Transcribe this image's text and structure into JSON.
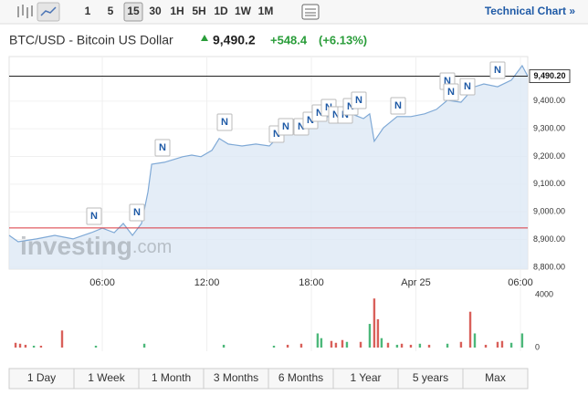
{
  "toolbar": {
    "intervals": [
      "1",
      "5",
      "15",
      "30",
      "1H",
      "5H",
      "1D",
      "1W",
      "1M"
    ],
    "link": "Technical Chart »"
  },
  "header": {
    "title": "BTC/USD - Bitcoin US Dollar",
    "price": "9,490.2",
    "change": "+548.4",
    "change_percent": "(+6.13%)"
  },
  "watermark": [
    "investing",
    ".com"
  ],
  "news_label": "N",
  "ranges": [
    "1 Day",
    "1 Week",
    "1 Month",
    "3 Months",
    "6 Months",
    "1 Year",
    "5 years",
    "Max"
  ],
  "chart_data": {
    "type": "line",
    "color": "#7fa9d6",
    "x": [
      0.65,
      1.17,
      2.22,
      3.27,
      4.32,
      5.37,
      6.0,
      6.68,
      7.2,
      7.73,
      8.25,
      8.62,
      8.83,
      9.56,
      10.08,
      10.61,
      11.13,
      11.66,
      12.29,
      12.71,
      13.23,
      14.02,
      14.81,
      15.59,
      16.11,
      16.9,
      17.68,
      18.21,
      18.99,
      19.62,
      20.3,
      20.99,
      21.35,
      21.61,
      22.14,
      22.92,
      23.71,
      24.5,
      25.18,
      25.81,
      26.59,
      27.38,
      27.9,
      28.69,
      29.48,
      30.1,
      30.42
    ],
    "values": [
      8915,
      8892,
      8902,
      8915,
      8902,
      8925,
      8941,
      8925,
      8958,
      8915,
      8958,
      9073,
      9172,
      9179,
      9189,
      9199,
      9205,
      9199,
      9222,
      9265,
      9245,
      9238,
      9245,
      9238,
      9271,
      9288,
      9311,
      9337,
      9344,
      9330,
      9354,
      9337,
      9354,
      9255,
      9304,
      9344,
      9344,
      9354,
      9370,
      9403,
      9396,
      9452,
      9462,
      9452,
      9476,
      9528,
      9490.2
    ],
    "last_label": "9,490.20",
    "previous_close": 8941.8,
    "xlim": [
      0.65,
      30.42
    ],
    "xticks": [
      {
        "value": 6,
        "label": "06:00"
      },
      {
        "value": 12,
        "label": "12:00"
      },
      {
        "value": 18,
        "label": "18:00"
      },
      {
        "value": 24,
        "label": "Apr 25"
      },
      {
        "value": 30,
        "label": "06:00"
      }
    ],
    "ylim": [
      8793,
      9561
    ],
    "yticks": [
      {
        "value": 8800,
        "label": "8,800.00"
      },
      {
        "value": 8900,
        "label": "8,900.00"
      },
      {
        "value": 9000,
        "label": "9,000.00"
      },
      {
        "value": 9100,
        "label": "9,100.00"
      },
      {
        "value": 9200,
        "label": "9,200.00"
      },
      {
        "value": 9300,
        "label": "9,300.00"
      },
      {
        "value": 9400,
        "label": "9,400.00"
      }
    ],
    "volume": {
      "x": [
        1.02,
        1.28,
        1.59,
        2.07,
        2.48,
        3.69,
        5.63,
        8.41,
        12.97,
        15.85,
        16.64,
        17.42,
        18.36,
        18.57,
        19.15,
        19.41,
        19.78,
        20.04,
        20.83,
        21.35,
        21.61,
        21.82,
        22.03,
        22.4,
        22.92,
        23.19,
        23.71,
        24.23,
        24.76,
        25.81,
        26.59,
        27.12,
        27.38,
        28.01,
        28.69,
        28.95,
        29.48,
        30.1
      ],
      "values": [
        360,
        290,
        210,
        140,
        140,
        1290,
        140,
        290,
        210,
        140,
        210,
        290,
        1070,
        710,
        500,
        360,
        570,
        430,
        430,
        1790,
        3710,
        2140,
        710,
        360,
        210,
        290,
        210,
        290,
        210,
        290,
        430,
        2710,
        1070,
        210,
        430,
        500,
        360,
        1070
      ],
      "colors": [
        "#d9605a",
        "#d9605a",
        "#d9605a",
        "#4cb87a",
        "#d9605a",
        "#d9605a",
        "#4cb87a",
        "#4cb87a",
        "#4cb87a",
        "#4cb87a",
        "#d9605a",
        "#d9605a",
        "#4cb87a",
        "#4cb87a",
        "#d9605a",
        "#d9605a",
        "#d9605a",
        "#4cb87a",
        "#d9605a",
        "#4cb87a",
        "#d9605a",
        "#d9605a",
        "#4cb87a",
        "#d9605a",
        "#4cb87a",
        "#d9605a",
        "#d9605a",
        "#4cb87a",
        "#d9605a",
        "#4cb87a",
        "#d9605a",
        "#d9605a",
        "#4cb87a",
        "#d9605a",
        "#d9605a",
        "#d9605a",
        "#4cb87a",
        "#4cb87a"
      ],
      "ylim": [
        0,
        4000
      ],
      "yticks": [
        0,
        4000
      ]
    }
  }
}
